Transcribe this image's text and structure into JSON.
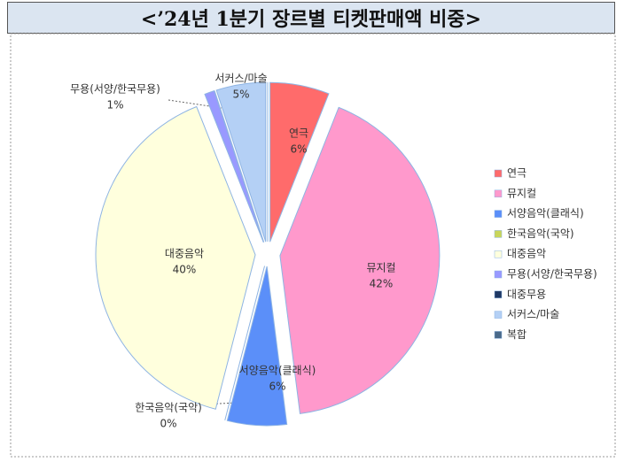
{
  "chart_data": {
    "type": "pie",
    "title": "<’24년 1분기 장르별 티켓판매액 비중>",
    "categories": [
      "연극",
      "뮤지컬",
      "서양음악(클래식)",
      "한국음악(국악)",
      "대중음악",
      "무용(서양/한국무용)",
      "대중무용",
      "서커스/마술",
      "복합"
    ],
    "values": [
      6,
      42,
      6,
      0,
      40,
      1,
      0,
      5,
      0
    ],
    "value_labels": [
      "6%",
      "42%",
      "6%",
      "0%",
      "40%",
      "1%",
      null,
      "5%",
      null
    ],
    "colors": [
      "#ff6b6b",
      "#ff99cc",
      "#5b8ff9",
      "#c9d65a",
      "#ffffdd",
      "#9999ff",
      "#1f3864",
      "#b4d0f5",
      "#4a6a8a"
    ],
    "legend": "right"
  }
}
